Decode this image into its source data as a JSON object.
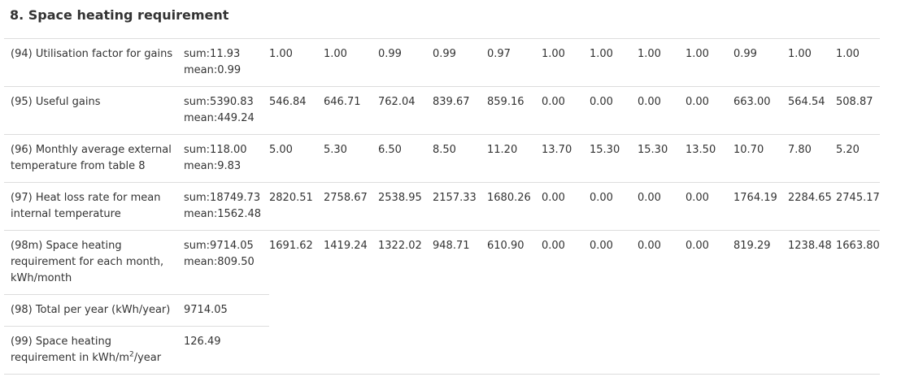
{
  "section": {
    "title": "8. Space heating requirement"
  },
  "rows": [
    {
      "label": "(94) Utilisation factor for gains",
      "sum": "sum:11.93",
      "mean": "mean:0.99",
      "months": [
        "1.00",
        "1.00",
        "0.99",
        "0.99",
        "0.97",
        "1.00",
        "1.00",
        "1.00",
        "1.00",
        "0.99",
        "1.00",
        "1.00"
      ]
    },
    {
      "label": "(95) Useful gains",
      "sum": "sum:5390.83",
      "mean": "mean:449.24",
      "months": [
        "546.84",
        "646.71",
        "762.04",
        "839.67",
        "859.16",
        "0.00",
        "0.00",
        "0.00",
        "0.00",
        "663.00",
        "564.54",
        "508.87"
      ]
    },
    {
      "label_line1": "(96) Monthly average external",
      "label_line2": "temperature from table 8",
      "sum": "sum:118.00",
      "mean": "mean:9.83",
      "months": [
        "5.00",
        "5.30",
        "6.50",
        "8.50",
        "11.20",
        "13.70",
        "15.30",
        "15.30",
        "13.50",
        "10.70",
        "7.80",
        "5.20"
      ]
    },
    {
      "label_line1": "(97) Heat loss rate for mean",
      "label_line2": "internal temperature",
      "sum": "sum:18749.73",
      "mean": "mean:1562.48",
      "months": [
        "2820.51",
        "2758.67",
        "2538.95",
        "2157.33",
        "1680.26",
        "0.00",
        "0.00",
        "0.00",
        "0.00",
        "1764.19",
        "2284.65",
        "2745.17"
      ]
    },
    {
      "label_line1": "(98m) Space heating",
      "label_line2": "requirement for each month,",
      "label_line3": "kWh/month",
      "sum": "sum:9714.05",
      "mean": "mean:809.50",
      "months": [
        "1691.62",
        "1419.24",
        "1322.02",
        "948.71",
        "610.90",
        "0.00",
        "0.00",
        "0.00",
        "0.00",
        "819.29",
        "1238.48",
        "1663.80"
      ]
    }
  ],
  "totals": [
    {
      "label": "(98) Total per year (kWh/year)",
      "value": "9714.05"
    },
    {
      "label_line1": "(99) Space heating",
      "label_line2_pre": "requirement in kWh/m",
      "label_line2_sup": "2",
      "label_line2_post": "/year",
      "value": "126.49"
    }
  ]
}
